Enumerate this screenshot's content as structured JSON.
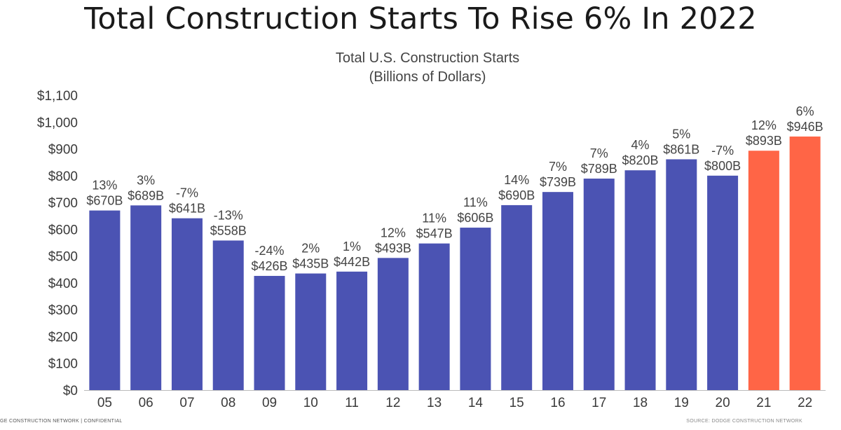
{
  "slide_title": "Total Construction Starts To Rise 6% In 2022",
  "footer": {
    "left": "GE CONSTRUCTION NETWORK  |  CONFIDENTIAL",
    "right": "SOURCE: DODGE CONSTRUCTION NETWORK"
  },
  "colors": {
    "actual": "#4b53b3",
    "forecast": "#ff6546"
  },
  "chart_data": {
    "type": "bar",
    "title": "Total U.S. Construction Starts",
    "subtitle": "(Billions of Dollars)",
    "xlabel": "",
    "ylabel": "",
    "ylim": [
      0,
      1100
    ],
    "yticks": [
      0,
      100,
      200,
      300,
      400,
      500,
      600,
      700,
      800,
      900,
      1000,
      1100
    ],
    "ytick_labels": [
      "$0",
      "$100",
      "$200",
      "$300",
      "$400",
      "$500",
      "$600",
      "$700",
      "$800",
      "$900",
      "$1,000",
      "$1,100"
    ],
    "grid": false,
    "categories": [
      "05",
      "06",
      "07",
      "08",
      "09",
      "10",
      "11",
      "12",
      "13",
      "14",
      "15",
      "16",
      "17",
      "18",
      "19",
      "20",
      "21",
      "22"
    ],
    "values": [
      670,
      689,
      641,
      558,
      426,
      435,
      442,
      493,
      547,
      606,
      690,
      739,
      789,
      820,
      861,
      800,
      893,
      946
    ],
    "value_labels": [
      "$670B",
      "$689B",
      "$641B",
      "$558B",
      "$426B",
      "$435B",
      "$442B",
      "$493B",
      "$547B",
      "$606B",
      "$690B",
      "$739B",
      "$789B",
      "$820B",
      "$861B",
      "$800B",
      "$893B",
      "$946B"
    ],
    "pct_labels": [
      "13%",
      "3%",
      "-7%",
      "-13%",
      "-24%",
      "2%",
      "1%",
      "12%",
      "11%",
      "11%",
      "14%",
      "7%",
      "7%",
      "4%",
      "5%",
      "-7%",
      "12%",
      "6%"
    ],
    "forecast": [
      false,
      false,
      false,
      false,
      false,
      false,
      false,
      false,
      false,
      false,
      false,
      false,
      false,
      false,
      false,
      false,
      true,
      true
    ]
  }
}
